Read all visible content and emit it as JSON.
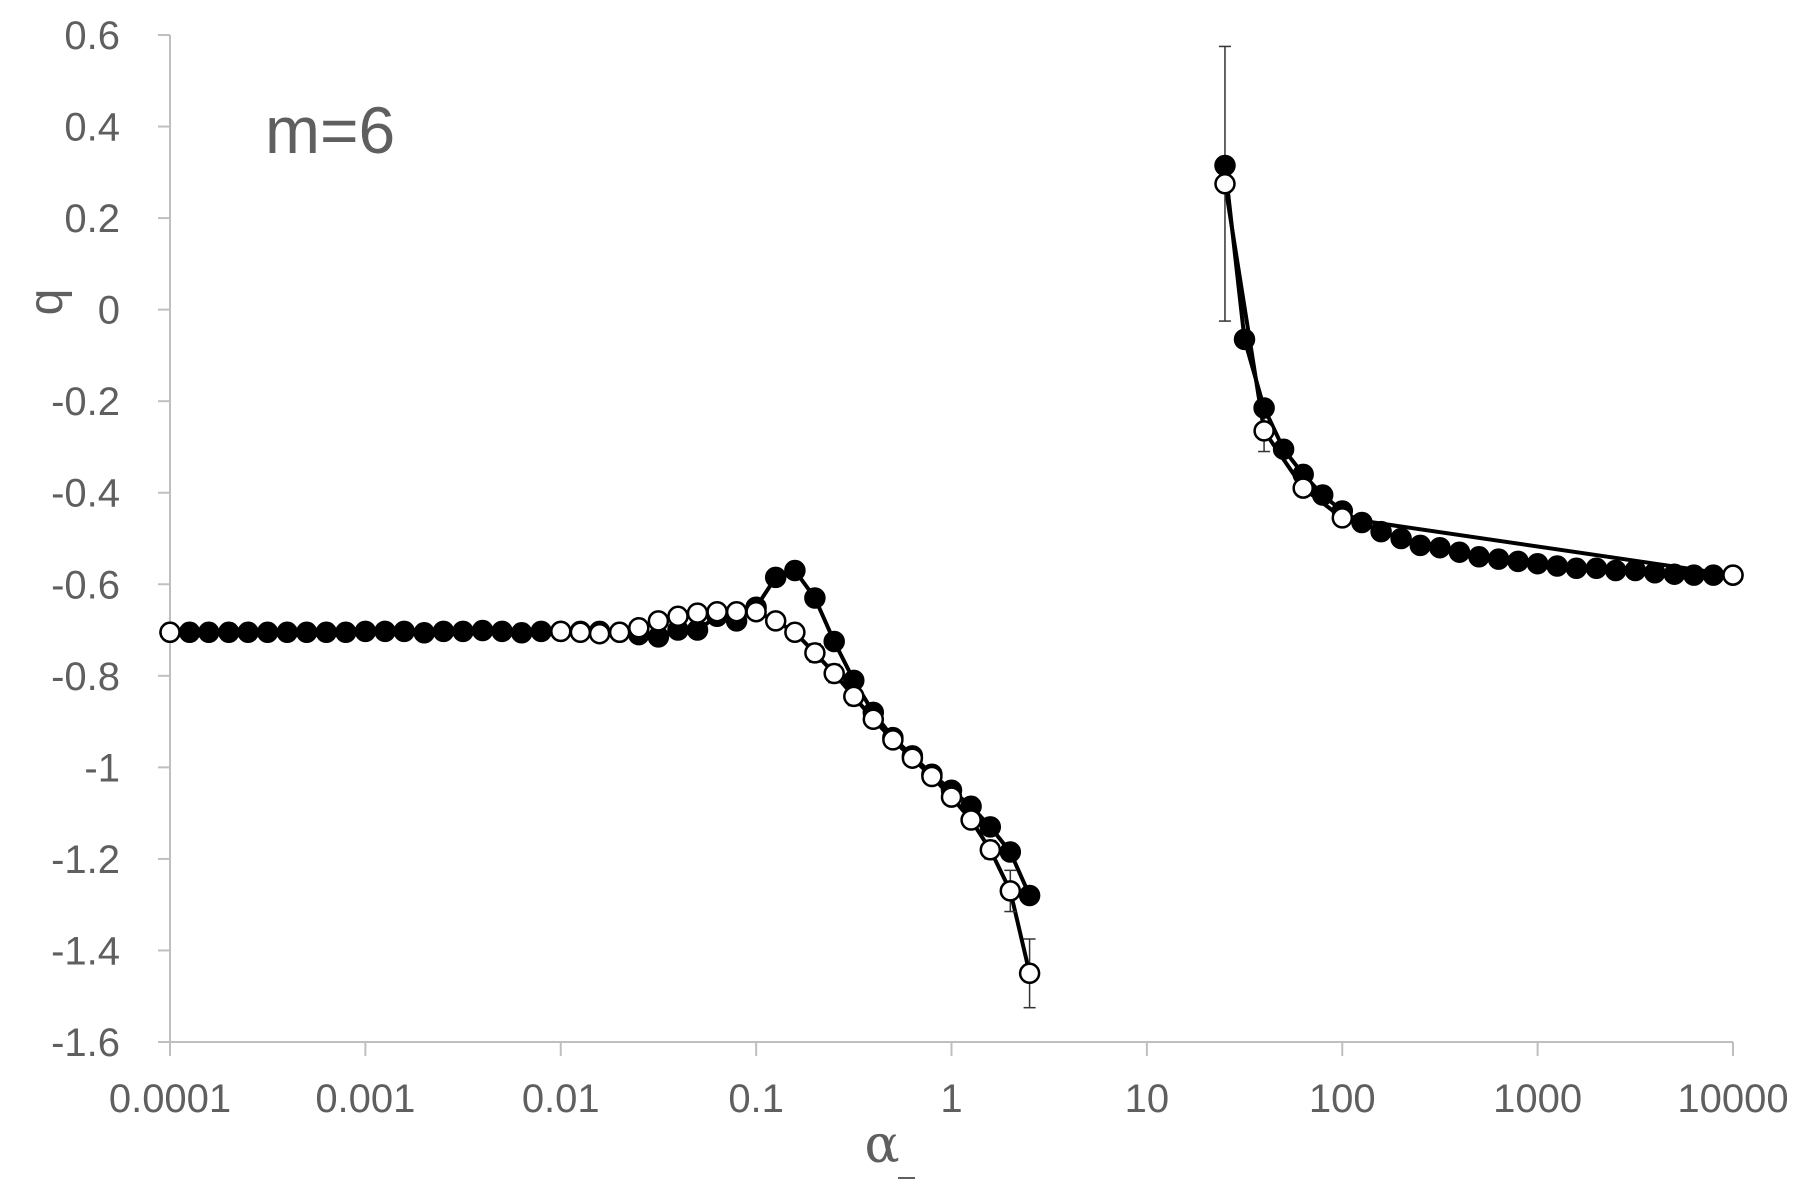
{
  "chart_data": {
    "type": "scatter",
    "annotation": "m=6",
    "xlabel": "α",
    "ylabel": "q",
    "x_scale": "log",
    "xlim": [
      0.0001,
      10000
    ],
    "ylim": [
      -1.6,
      0.6
    ],
    "x_ticks": [
      "0.0001",
      "0.001",
      "0.01",
      "0.1",
      "1",
      "10",
      "100",
      "1000",
      "10000"
    ],
    "y_ticks": [
      "0.6",
      "0.4",
      "0.2",
      "0",
      "-0.2",
      "-0.4",
      "-0.6",
      "-0.8",
      "-1",
      "-1.2",
      "-1.4",
      "-1.6"
    ],
    "grid": false,
    "legend": "none",
    "series": [
      {
        "marker": "filled-circle",
        "color": "#000000",
        "segments": [
          [
            [
              0.0001,
              -0.705
            ],
            [
              0.000126,
              -0.705
            ],
            [
              0.000158,
              -0.705
            ],
            [
              0.0002,
              -0.705
            ],
            [
              0.000251,
              -0.705
            ],
            [
              0.000316,
              -0.705
            ],
            [
              0.000398,
              -0.705
            ],
            [
              0.000501,
              -0.705
            ],
            [
              0.000631,
              -0.705
            ],
            [
              0.000794,
              -0.705
            ],
            [
              0.001,
              -0.703
            ],
            [
              0.00126,
              -0.703
            ],
            [
              0.00158,
              -0.703
            ],
            [
              0.002,
              -0.706
            ],
            [
              0.00251,
              -0.703
            ],
            [
              0.00316,
              -0.703
            ],
            [
              0.00398,
              -0.701
            ],
            [
              0.00501,
              -0.703
            ],
            [
              0.00631,
              -0.706
            ],
            [
              0.00794,
              -0.703
            ],
            [
              0.01,
              -0.703
            ],
            [
              0.0126,
              -0.703
            ],
            [
              0.0158,
              -0.703
            ],
            [
              0.02,
              -0.705
            ],
            [
              0.0251,
              -0.71
            ],
            [
              0.0316,
              -0.715
            ],
            [
              0.0398,
              -0.7
            ],
            [
              0.0501,
              -0.7
            ],
            [
              0.0631,
              -0.67
            ],
            [
              0.0794,
              -0.68
            ],
            [
              0.1,
              -0.65
            ],
            [
              0.126,
              -0.585
            ],
            [
              0.158,
              -0.57
            ],
            [
              0.2,
              -0.63
            ],
            [
              0.251,
              -0.725
            ],
            [
              0.316,
              -0.81
            ],
            [
              0.398,
              -0.88
            ],
            [
              0.501,
              -0.935
            ],
            [
              0.631,
              -0.975
            ],
            [
              0.794,
              -1.015
            ],
            [
              1.0,
              -1.05
            ],
            [
              1.26,
              -1.085
            ],
            [
              1.58,
              -1.13
            ],
            [
              2.0,
              -1.185
            ],
            [
              2.51,
              -1.28
            ]
          ],
          [
            [
              25.1,
              0.315
            ],
            [
              31.6,
              -0.065
            ],
            [
              39.8,
              -0.215
            ],
            [
              50.1,
              -0.305
            ],
            [
              63.1,
              -0.36
            ],
            [
              79.4,
              -0.405
            ],
            [
              100,
              -0.44
            ],
            [
              126,
              -0.465
            ],
            [
              158,
              -0.485
            ],
            [
              200,
              -0.5
            ],
            [
              251,
              -0.515
            ],
            [
              316,
              -0.52
            ],
            [
              398,
              -0.53
            ],
            [
              501,
              -0.54
            ],
            [
              631,
              -0.545
            ],
            [
              794,
              -0.55
            ],
            [
              1000,
              -0.555
            ],
            [
              1260,
              -0.56
            ],
            [
              1580,
              -0.565
            ],
            [
              2000,
              -0.565
            ],
            [
              2510,
              -0.57
            ],
            [
              3160,
              -0.57
            ],
            [
              3980,
              -0.575
            ],
            [
              5010,
              -0.578
            ],
            [
              6310,
              -0.58
            ],
            [
              7940,
              -0.58
            ],
            [
              10000,
              -0.58
            ]
          ]
        ]
      },
      {
        "marker": "open-circle",
        "color": "#000000",
        "segments": [
          [
            [
              0.0001,
              -0.705
            ],
            [
              0.01,
              -0.703
            ],
            [
              0.0126,
              -0.705
            ],
            [
              0.0158,
              -0.708
            ],
            [
              0.02,
              -0.705
            ],
            [
              0.0251,
              -0.695
            ],
            [
              0.0316,
              -0.68
            ],
            [
              0.0398,
              -0.67
            ],
            [
              0.0501,
              -0.663
            ],
            [
              0.0631,
              -0.66
            ],
            [
              0.0794,
              -0.66
            ],
            [
              0.1,
              -0.66
            ],
            [
              0.126,
              -0.68
            ],
            [
              0.158,
              -0.705
            ],
            [
              0.2,
              -0.75
            ],
            [
              0.251,
              -0.795
            ],
            [
              0.316,
              -0.845
            ],
            [
              0.398,
              -0.895
            ],
            [
              0.501,
              -0.94
            ],
            [
              0.631,
              -0.98
            ],
            [
              0.794,
              -1.02
            ],
            [
              1.0,
              -1.065
            ],
            [
              1.26,
              -1.115
            ],
            [
              1.58,
              -1.18
            ],
            [
              2.0,
              -1.27
            ],
            [
              2.51,
              -1.45
            ]
          ],
          [
            [
              25.1,
              0.275
            ],
            [
              39.8,
              -0.265
            ],
            [
              63.1,
              -0.39
            ],
            [
              100,
              -0.455
            ],
            [
              10000,
              -0.58
            ]
          ]
        ],
        "error_bars": [
          [
            0.158,
            -0.705,
            0.015
          ],
          [
            0.2,
            -0.75,
            0.02
          ],
          [
            0.251,
            -0.795,
            0.02
          ],
          [
            0.316,
            -0.845,
            0.02
          ],
          [
            1.58,
            -1.18,
            0.02
          ],
          [
            2.0,
            -1.27,
            0.045
          ],
          [
            2.51,
            -1.45,
            0.075
          ],
          [
            25.1,
            0.275,
            0.3
          ],
          [
            39.8,
            -0.265,
            0.045
          ]
        ]
      }
    ]
  }
}
